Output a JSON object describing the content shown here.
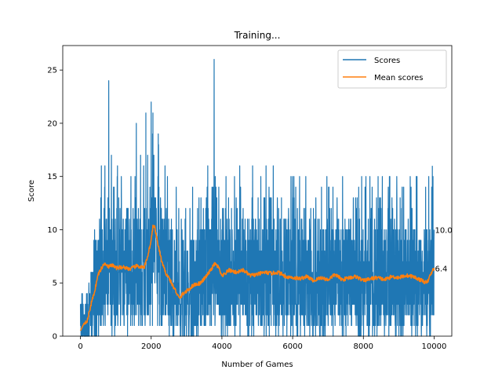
{
  "chart_data": {
    "type": "line",
    "title": "Training...",
    "xlabel": "Number of Games",
    "ylabel": "Score",
    "xlim": [
      -500,
      10500
    ],
    "ylim": [
      0,
      27.3
    ],
    "xticks": [
      0,
      2000,
      4000,
      6000,
      8000,
      10000
    ],
    "yticks": [
      0,
      5,
      10,
      15,
      20,
      25
    ],
    "grid": false,
    "legend_position": "top-right",
    "n_games": 10000,
    "series": [
      {
        "name": "Scores",
        "color": "#1f77b4",
        "typical_range": [
          1,
          13
        ],
        "peaks": [
          {
            "x": 800,
            "y": 24
          },
          {
            "x": 1580,
            "y": 20
          },
          {
            "x": 1700,
            "y": 17
          },
          {
            "x": 1850,
            "y": 21
          },
          {
            "x": 2000,
            "y": 22
          },
          {
            "x": 2050,
            "y": 21
          },
          {
            "x": 2200,
            "y": 19
          },
          {
            "x": 3780,
            "y": 26
          },
          {
            "x": 3600,
            "y": 16
          },
          {
            "x": 9950,
            "y": 16
          }
        ],
        "last_value": 10.0
      },
      {
        "name": "Mean scores",
        "color": "#ff7f0e",
        "x": [
          0,
          100,
          200,
          300,
          400,
          500,
          600,
          700,
          800,
          900,
          1000,
          1200,
          1400,
          1600,
          1800,
          1900,
          2000,
          2050,
          2100,
          2200,
          2300,
          2400,
          2500,
          2600,
          2700,
          2800,
          2900,
          3000,
          3200,
          3400,
          3600,
          3800,
          3900,
          4000,
          4200,
          4400,
          4600,
          4800,
          5000,
          5200,
          5400,
          5600,
          5800,
          6000,
          6200,
          6400,
          6600,
          6800,
          7000,
          7200,
          7400,
          7600,
          7800,
          8000,
          8200,
          8400,
          8600,
          8800,
          9000,
          9200,
          9400,
          9600,
          9800,
          9900,
          10000
        ],
        "y": [
          0.5,
          1.2,
          1.5,
          3.0,
          4.2,
          5.8,
          6.4,
          6.9,
          6.5,
          6.7,
          6.4,
          6.5,
          6.3,
          6.6,
          6.4,
          7.5,
          9.0,
          10.3,
          10.2,
          8.5,
          7.0,
          6.0,
          5.5,
          4.8,
          4.2,
          3.5,
          4.0,
          4.2,
          4.8,
          5.0,
          5.8,
          6.8,
          6.5,
          5.6,
          6.2,
          6.0,
          6.2,
          5.7,
          5.8,
          6.0,
          5.9,
          6.0,
          5.6,
          5.5,
          5.4,
          5.6,
          5.2,
          5.5,
          5.3,
          5.8,
          5.3,
          5.5,
          5.6,
          5.2,
          5.4,
          5.5,
          5.3,
          5.6,
          5.5,
          5.7,
          5.6,
          5.3,
          5.0,
          5.8,
          6.4
        ],
        "last_value": 6.4
      }
    ],
    "annotations": [
      {
        "text": "10.0",
        "x": 10000,
        "y": 10.0
      },
      {
        "text": "6.4",
        "x": 10000,
        "y": 6.4
      }
    ]
  }
}
